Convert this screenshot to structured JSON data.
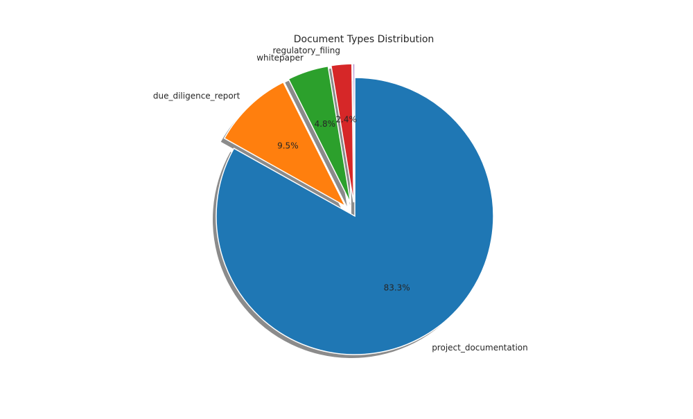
{
  "chart_data": {
    "type": "pie",
    "title": "Document Types Distribution",
    "start_angle_deg": 90,
    "direction": "clockwise",
    "shadow": true,
    "slices": [
      {
        "label": "project_documentation",
        "value": 83.3,
        "pct_label": "83.3%",
        "color": "#1f77b4",
        "explode": 0.0
      },
      {
        "label": "due_diligence_report",
        "value": 9.5,
        "pct_label": "9.5%",
        "color": "#ff7f0e",
        "explode": 0.1
      },
      {
        "label": "whitepaper",
        "value": 4.8,
        "pct_label": "4.8%",
        "color": "#2ca02c",
        "explode": 0.1
      },
      {
        "label": "regulatory_filing",
        "value": 2.4,
        "pct_label": "2.4%",
        "color": "#d62728",
        "explode": 0.1
      },
      {
        "label": "",
        "value": 0.2,
        "pct_label": "",
        "color": "#9467bd",
        "explode": 0.1
      }
    ]
  }
}
